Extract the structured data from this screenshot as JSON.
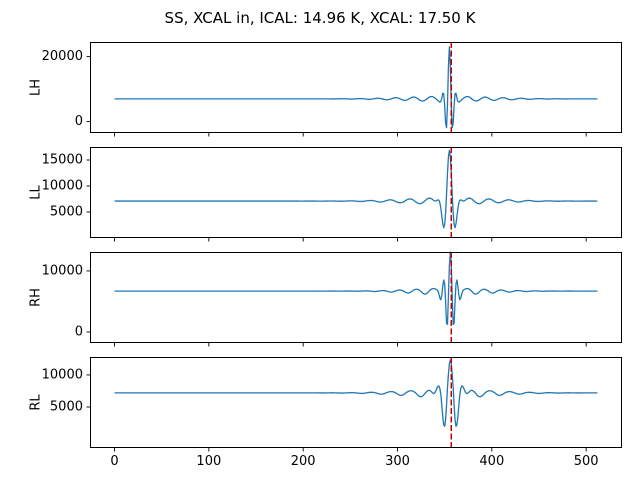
{
  "chart_data": {
    "type": "line",
    "title": "SS, XCAL in, ICAL: 14.96 K, XCAL: 17.50 K",
    "xlabel": "",
    "ylabel": "",
    "x_ticks": [
      0,
      100,
      200,
      300,
      400,
      500
    ],
    "xlim": [
      -26,
      538
    ],
    "n_points": 513,
    "cursor_x": 357,
    "line_color": "#1f77b4",
    "cursor_color": "#c00000",
    "grid": false,
    "legend": null,
    "subplots": [
      {
        "label": "LH",
        "yticks": [
          0,
          20000
        ],
        "ylim": [
          -3500,
          24500
        ],
        "baseline": 7000,
        "burst_center": 355,
        "neg_gain": 1.0,
        "peak_value": 22200,
        "trough_value": -2200,
        "components": [
          {
            "amplitude": 15200,
            "period": 7.2,
            "sigma": 3.6
          },
          {
            "amplitude": 800,
            "period": 19,
            "sigma": 45
          }
        ]
      },
      {
        "label": "LL",
        "yticks": [
          5000,
          10000,
          15000
        ],
        "ylim": [
          0,
          17500
        ],
        "baseline": 7100,
        "burst_center": 355,
        "neg_gain": 1.0,
        "peak_value": 16200,
        "trough_value": 2500,
        "components": [
          {
            "amplitude": 9100,
            "period": 13,
            "sigma": 5.6
          },
          {
            "amplitude": 650,
            "period": 21,
            "sigma": 45
          }
        ]
      },
      {
        "label": "RH",
        "yticks": [
          0,
          10000
        ],
        "ylim": [
          -1800,
          13100
        ],
        "baseline": 6700,
        "burst_center": 356,
        "neg_gain": 1.35,
        "peak_value": 12600,
        "trough_value": 500,
        "components": [
          {
            "amplitude": 5900,
            "period": 7.2,
            "sigma": 5.0
          },
          {
            "amplitude": 480,
            "period": 18,
            "sigma": 38
          }
        ]
      },
      {
        "label": "RL",
        "yticks": [
          5000,
          10000
        ],
        "ylim": [
          -1400,
          12800
        ],
        "baseline": 7200,
        "burst_center": 356,
        "neg_gain": 1.45,
        "peak_value": 11800,
        "trough_value": 2200,
        "components": [
          {
            "amplitude": 4600,
            "period": 13,
            "sigma": 8.5
          },
          {
            "amplitude": 520,
            "period": 21,
            "sigma": 45
          }
        ]
      }
    ]
  }
}
